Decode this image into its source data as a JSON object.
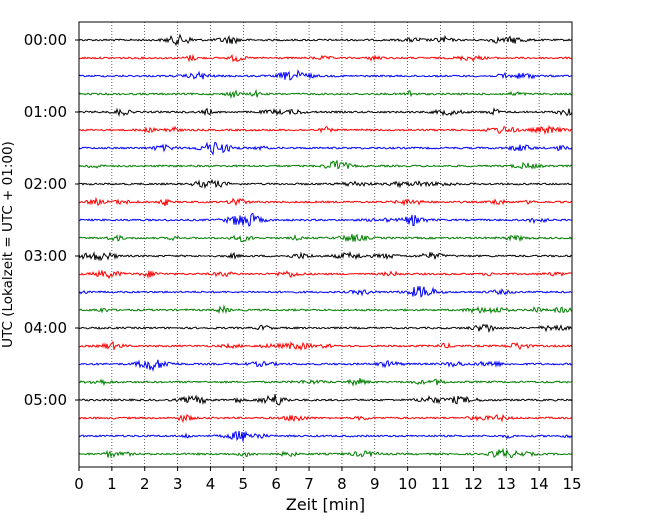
{
  "chart_data": {
    "type": "line",
    "title": "",
    "xlabel": "Zeit  [min]",
    "ylabel": "UTC (Lokalzeit = UTC + 01:00)",
    "xlim": [
      0,
      15
    ],
    "x_ticks": [
      "0",
      "1",
      "2",
      "3",
      "4",
      "5",
      "6",
      "7",
      "8",
      "9",
      "10",
      "11",
      "12",
      "13",
      "14",
      "15"
    ],
    "y_tick_labels": [
      "00:00",
      "01:00",
      "02:00",
      "03:00",
      "04:00",
      "05:00"
    ],
    "trace_interval_minutes": 15,
    "trace_count": 24,
    "trace_colors": [
      "#000000",
      "#ff0000",
      "#0000ff",
      "#008000"
    ],
    "grid": "vertical dotted lines at each minute",
    "legend": "none"
  }
}
